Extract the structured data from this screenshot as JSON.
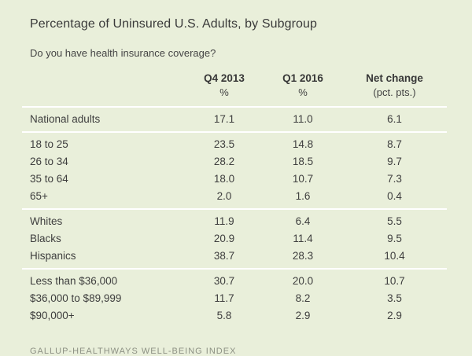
{
  "page": {
    "title": "Percentage of Uninsured U.S. Adults, by Subgroup",
    "subtitle": "Do you have health insurance coverage?",
    "source_line": "GALLUP-HEALTHWAYS WELL-BEING INDEX"
  },
  "colors": {
    "background": "#e9efda",
    "divider": "#ffffff",
    "text": "#3e3e3e",
    "source_text": "#8d9184"
  },
  "chart_data": {
    "type": "table",
    "title": "Percentage of Uninsured U.S. Adults, by Subgroup",
    "subtitle": "Do you have health insurance coverage?",
    "columns": [
      {
        "label": "Q4 2013",
        "unit": "%"
      },
      {
        "label": "Q1 2016",
        "unit": "%"
      },
      {
        "label": "Net change",
        "unit": "(pct. pts.)"
      }
    ],
    "sections": [
      {
        "name": "national",
        "rows": [
          {
            "label": "National adults",
            "values": [
              "17.1",
              "11.0",
              "6.1"
            ]
          }
        ]
      },
      {
        "name": "age",
        "rows": [
          {
            "label": "18 to 25",
            "values": [
              "23.5",
              "14.8",
              "8.7"
            ]
          },
          {
            "label": "26 to 34",
            "values": [
              "28.2",
              "18.5",
              "9.7"
            ]
          },
          {
            "label": "35 to 64",
            "values": [
              "18.0",
              "10.7",
              "7.3"
            ]
          },
          {
            "label": "65+",
            "values": [
              "2.0",
              "1.6",
              "0.4"
            ]
          }
        ]
      },
      {
        "name": "race-ethnicity",
        "rows": [
          {
            "label": "Whites",
            "values": [
              "11.9",
              "6.4",
              "5.5"
            ]
          },
          {
            "label": "Blacks",
            "values": [
              "20.9",
              "11.4",
              "9.5"
            ]
          },
          {
            "label": "Hispanics",
            "values": [
              "38.7",
              "28.3",
              "10.4"
            ]
          }
        ]
      },
      {
        "name": "income",
        "rows": [
          {
            "label": "Less than $36,000",
            "values": [
              "30.7",
              "20.0",
              "10.7"
            ]
          },
          {
            "label": "$36,000 to $89,999",
            "values": [
              "11.7",
              "8.2",
              "3.5"
            ]
          },
          {
            "label": "$90,000+",
            "values": [
              "5.8",
              "2.9",
              "2.9"
            ]
          }
        ]
      }
    ],
    "legend_position": "none",
    "grid": "section-dividers-only"
  }
}
